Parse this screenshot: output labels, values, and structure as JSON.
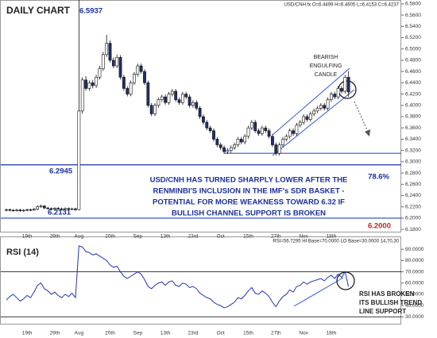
{
  "chart_data": [
    {
      "type": "candlestick",
      "title": "DAILY CHART",
      "header": "USD/CNH.fx O=6.4499 H=6.4605 L=6.4153 C=6.4237",
      "categories": [
        null,
        null,
        null,
        null,
        null,
        null,
        "19th",
        null,
        null,
        null,
        null,
        null,
        null,
        null,
        "29th",
        null,
        null,
        null,
        null,
        null,
        null,
        "Aug",
        null,
        null,
        null,
        null,
        null,
        null,
        null,
        null,
        "20th",
        null,
        null,
        null,
        null,
        null,
        null,
        null,
        "Sep",
        null,
        null,
        null,
        null,
        null,
        null,
        null,
        "13th",
        null,
        null,
        null,
        null,
        null,
        null,
        null,
        "23rd",
        null,
        null,
        null,
        null,
        null,
        null,
        null,
        "Oct",
        null,
        null,
        null,
        null,
        null,
        null,
        null,
        "15th",
        null,
        null,
        null,
        null,
        null,
        null,
        null,
        "27th",
        null,
        null,
        null,
        null,
        null,
        null,
        null,
        "Nov",
        null,
        null,
        null,
        null,
        null,
        null,
        null,
        "18th",
        null,
        null,
        null,
        null,
        null
      ],
      "candles": [
        [
          6.214,
          6.217,
          6.212,
          6.215
        ],
        [
          6.215,
          6.217,
          6.212,
          6.214
        ],
        [
          6.214,
          6.216,
          6.2115,
          6.2135
        ],
        [
          6.2135,
          6.2165,
          6.2115,
          6.2145
        ],
        [
          6.2145,
          6.2165,
          6.211,
          6.213
        ],
        [
          6.213,
          6.216,
          6.211,
          6.214
        ],
        [
          6.214,
          6.217,
          6.212,
          6.215
        ],
        [
          6.215,
          6.217,
          6.2125,
          6.2145
        ],
        [
          6.2145,
          6.218,
          6.2125,
          6.216
        ],
        [
          6.216,
          6.223,
          6.214,
          6.22
        ],
        [
          6.22,
          6.224,
          6.218,
          6.2215
        ],
        [
          6.2215,
          6.2235,
          6.216,
          6.218
        ],
        [
          6.218,
          6.22,
          6.215,
          6.217
        ],
        [
          6.217,
          6.219,
          6.214,
          6.216
        ],
        [
          6.216,
          6.2195,
          6.214,
          6.2175
        ],
        [
          6.2175,
          6.2195,
          6.2145,
          6.2165
        ],
        [
          6.2165,
          6.2185,
          6.2135,
          6.2155
        ],
        [
          6.2155,
          6.219,
          6.2135,
          6.217
        ],
        [
          6.217,
          6.219,
          6.214,
          6.216
        ],
        [
          6.216,
          6.2185,
          6.214,
          6.2165
        ],
        [
          6.2165,
          6.2185,
          6.2131,
          6.215
        ],
        [
          6.215,
          6.5937,
          6.214,
          6.39
        ],
        [
          6.39,
          6.45,
          6.385,
          6.445
        ],
        [
          6.445,
          6.452,
          6.426,
          6.43
        ],
        [
          6.43,
          6.444,
          6.426,
          6.44
        ],
        [
          6.44,
          6.445,
          6.43,
          6.435
        ],
        [
          6.435,
          6.454,
          6.431,
          6.45
        ],
        [
          6.45,
          6.47,
          6.446,
          6.465
        ],
        [
          6.465,
          6.495,
          6.461,
          6.49
        ],
        [
          6.49,
          6.525,
          6.486,
          6.51
        ],
        [
          6.51,
          6.515,
          6.476,
          6.48
        ],
        [
          6.48,
          6.485,
          6.466,
          6.47
        ],
        [
          6.47,
          6.49,
          6.466,
          6.485
        ],
        [
          6.485,
          6.489,
          6.446,
          6.45
        ],
        [
          6.45,
          6.454,
          6.426,
          6.43
        ],
        [
          6.43,
          6.434,
          6.416,
          6.42
        ],
        [
          6.42,
          6.444,
          6.416,
          6.44
        ],
        [
          6.44,
          6.459,
          6.436,
          6.455
        ],
        [
          6.455,
          6.474,
          6.451,
          6.47
        ],
        [
          6.47,
          6.474,
          6.456,
          6.46
        ],
        [
          6.46,
          6.464,
          6.436,
          6.44
        ],
        [
          6.44,
          6.444,
          6.396,
          6.4
        ],
        [
          6.4,
          6.404,
          6.381,
          6.385
        ],
        [
          6.385,
          6.404,
          6.381,
          6.4
        ],
        [
          6.4,
          6.414,
          6.396,
          6.41
        ],
        [
          6.41,
          6.419,
          6.406,
          6.415
        ],
        [
          6.415,
          6.419,
          6.401,
          6.405
        ],
        [
          6.405,
          6.424,
          6.401,
          6.42
        ],
        [
          6.42,
          6.429,
          6.416,
          6.425
        ],
        [
          6.425,
          6.429,
          6.406,
          6.41
        ],
        [
          6.41,
          6.414,
          6.401,
          6.405
        ],
        [
          6.405,
          6.424,
          6.401,
          6.42
        ],
        [
          6.42,
          6.424,
          6.411,
          6.415
        ],
        [
          6.415,
          6.419,
          6.396,
          6.4
        ],
        [
          6.4,
          6.409,
          6.396,
          6.405
        ],
        [
          6.405,
          6.409,
          6.391,
          6.395
        ],
        [
          6.395,
          6.399,
          6.376,
          6.38
        ],
        [
          6.38,
          6.384,
          6.366,
          6.37
        ],
        [
          6.37,
          6.374,
          6.356,
          6.36
        ],
        [
          6.36,
          6.364,
          6.351,
          6.355
        ],
        [
          6.355,
          6.359,
          6.336,
          6.34
        ],
        [
          6.34,
          6.344,
          6.326,
          6.33
        ],
        [
          6.33,
          6.334,
          6.321,
          6.325
        ],
        [
          6.325,
          6.329,
          6.314,
          6.318
        ],
        [
          6.318,
          6.324,
          6.314,
          6.32
        ],
        [
          6.32,
          6.329,
          6.316,
          6.325
        ],
        [
          6.325,
          6.334,
          6.321,
          6.33
        ],
        [
          6.33,
          6.344,
          6.326,
          6.34
        ],
        [
          6.34,
          6.344,
          6.331,
          6.335
        ],
        [
          6.335,
          6.349,
          6.331,
          6.345
        ],
        [
          6.345,
          6.364,
          6.341,
          6.36
        ],
        [
          6.36,
          6.374,
          6.356,
          6.37
        ],
        [
          6.37,
          6.374,
          6.351,
          6.355
        ],
        [
          6.355,
          6.359,
          6.346,
          6.35
        ],
        [
          6.35,
          6.364,
          6.346,
          6.36
        ],
        [
          6.36,
          6.364,
          6.351,
          6.355
        ],
        [
          6.355,
          6.359,
          6.341,
          6.345
        ],
        [
          6.345,
          6.349,
          6.326,
          6.33
        ],
        [
          6.33,
          6.334,
          6.311,
          6.315
        ],
        [
          6.315,
          6.334,
          6.311,
          6.33
        ],
        [
          6.33,
          6.344,
          6.326,
          6.34
        ],
        [
          6.34,
          6.349,
          6.336,
          6.345
        ],
        [
          6.345,
          6.359,
          6.341,
          6.355
        ],
        [
          6.355,
          6.359,
          6.346,
          6.35
        ],
        [
          6.35,
          6.369,
          6.346,
          6.365
        ],
        [
          6.365,
          6.374,
          6.361,
          6.37
        ],
        [
          6.37,
          6.384,
          6.366,
          6.38
        ],
        [
          6.38,
          6.384,
          6.371,
          6.375
        ],
        [
          6.375,
          6.389,
          6.371,
          6.385
        ],
        [
          6.385,
          6.394,
          6.381,
          6.39
        ],
        [
          6.39,
          6.399,
          6.386,
          6.395
        ],
        [
          6.395,
          6.404,
          6.391,
          6.4
        ],
        [
          6.4,
          6.404,
          6.391,
          6.395
        ],
        [
          6.395,
          6.414,
          6.391,
          6.41
        ],
        [
          6.41,
          6.424,
          6.406,
          6.42
        ],
        [
          6.42,
          6.424,
          6.411,
          6.415
        ],
        [
          6.415,
          6.434,
          6.411,
          6.43
        ],
        [
          6.43,
          6.434,
          6.421,
          6.425
        ],
        [
          6.425,
          6.454,
          6.421,
          6.4499
        ],
        [
          6.4499,
          6.4605,
          6.4153,
          6.4237
        ]
      ],
      "up_color": "#ffffff",
      "down_color": "#1f2f6e",
      "ylim": [
        6.176,
        6.584
      ],
      "yticks": [
        {
          "value": 6.58,
          "label": "6.5800"
        },
        {
          "value": 6.56,
          "label": "6.5600"
        },
        {
          "value": 6.54,
          "label": "6.5400"
        },
        {
          "value": 6.52,
          "label": "6.5200"
        },
        {
          "value": 6.5,
          "label": "6.5000"
        },
        {
          "value": 6.48,
          "label": "6.4800"
        },
        {
          "value": 6.46,
          "label": "6.4600"
        },
        {
          "value": 6.44,
          "label": "6.4400"
        },
        {
          "value": 6.42,
          "label": "6.4200"
        },
        {
          "value": 6.4,
          "label": "6.4000"
        },
        {
          "value": 6.38,
          "label": "6.3800"
        },
        {
          "value": 6.36,
          "label": "6.3600"
        },
        {
          "value": 6.34,
          "label": "6.3400"
        },
        {
          "value": 6.32,
          "label": "6.3200"
        },
        {
          "value": 6.3,
          "label": "6.3000"
        },
        {
          "value": 6.28,
          "label": "6.2800"
        },
        {
          "value": 6.26,
          "label": "6.2600"
        },
        {
          "value": 6.24,
          "label": "6.2400"
        },
        {
          "value": 6.22,
          "label": "6.2200"
        },
        {
          "value": 6.2,
          "label": "6.2000"
        },
        {
          "value": 6.18,
          "label": "6.1800"
        }
      ],
      "levels": [
        {
          "value": 6.2945,
          "label": "6.2945",
          "color": "#1a2f9e"
        },
        {
          "value": 6.2,
          "label": "6.2000",
          "color": "#2244cc"
        }
      ],
      "support_level": 6.315,
      "high_label": 6.5937,
      "low_label": 6.2131,
      "fib_label": "78.6%",
      "annotation": [
        "USD/CNH HAS TURNED SHARPLY LOWER AFTER THE",
        "RENMINBI'S INCLUSION IN THE IMF's SDR BASKET -",
        "POTENTIAL FOR MORE WEAKNESS TOWARD 6.32 IF",
        "BULLISH CHANNEL SUPPORT IS BROKEN"
      ],
      "pattern_label": [
        "BEARISH",
        "ENGULFING",
        "CANDLE"
      ]
    },
    {
      "type": "line",
      "title": "RSI (14)",
      "header": "RSI=56.7295 HI Base=70.0000 LO Base=30.0000   14,70,30",
      "categories": [
        null,
        null,
        null,
        null,
        null,
        null,
        "19th",
        null,
        null,
        null,
        null,
        null,
        null,
        null,
        "29th",
        null,
        null,
        null,
        null,
        null,
        null,
        "Aug",
        null,
        null,
        null,
        null,
        null,
        null,
        null,
        null,
        "20th",
        null,
        null,
        null,
        null,
        null,
        null,
        null,
        "Sep",
        null,
        null,
        null,
        null,
        null,
        null,
        null,
        "13th",
        null,
        null,
        null,
        null,
        null,
        null,
        null,
        "23rd",
        null,
        null,
        null,
        null,
        null,
        null,
        null,
        "Oct",
        null,
        null,
        null,
        null,
        null,
        null,
        null,
        "15th",
        null,
        null,
        null,
        null,
        null,
        null,
        null,
        "27th",
        null,
        null,
        null,
        null,
        null,
        null,
        null,
        "Nov",
        null,
        null,
        null,
        null,
        null,
        null,
        null,
        "18th",
        null,
        null,
        null,
        null,
        null
      ],
      "series": [
        {
          "name": "RSI",
          "color": "#2233bb",
          "values": [
            45,
            48,
            50,
            47,
            44,
            46,
            49,
            47,
            52,
            58,
            60,
            55,
            53,
            50,
            52,
            49,
            47,
            50,
            48,
            51,
            47,
            93,
            92,
            88,
            87,
            85,
            86,
            84,
            82,
            80,
            76,
            74,
            75,
            70,
            66,
            64,
            66,
            68,
            70,
            68,
            63,
            57,
            55,
            58,
            60,
            61,
            58,
            61,
            62,
            58,
            57,
            60,
            59,
            56,
            57,
            55,
            51,
            49,
            47,
            46,
            43,
            41,
            40,
            38,
            39,
            41,
            43,
            47,
            46,
            49,
            53,
            56,
            51,
            50,
            53,
            51,
            48,
            43,
            39,
            44,
            48,
            50,
            54,
            52,
            57,
            58,
            61,
            59,
            61,
            62,
            63,
            64,
            62,
            65,
            67,
            64,
            68,
            65,
            70,
            56.7295
          ]
        }
      ],
      "ylim": [
        26,
        100
      ],
      "yticks": [
        {
          "value": 90,
          "label": "90.0000"
        },
        {
          "value": 80,
          "label": "80.0000"
        },
        {
          "value": 70,
          "label": "70.0000"
        },
        {
          "value": 60,
          "label": "60.0000"
        },
        {
          "value": 50,
          "label": "50.0000"
        },
        {
          "value": 40,
          "label": "40.0000"
        },
        {
          "value": 30,
          "label": "30.0000"
        }
      ],
      "levels": [
        70,
        30
      ],
      "annotation": [
        "RSI HAS BROKEN",
        "ITS BULLISH TREND",
        "LINE SUPPORT"
      ]
    }
  ]
}
